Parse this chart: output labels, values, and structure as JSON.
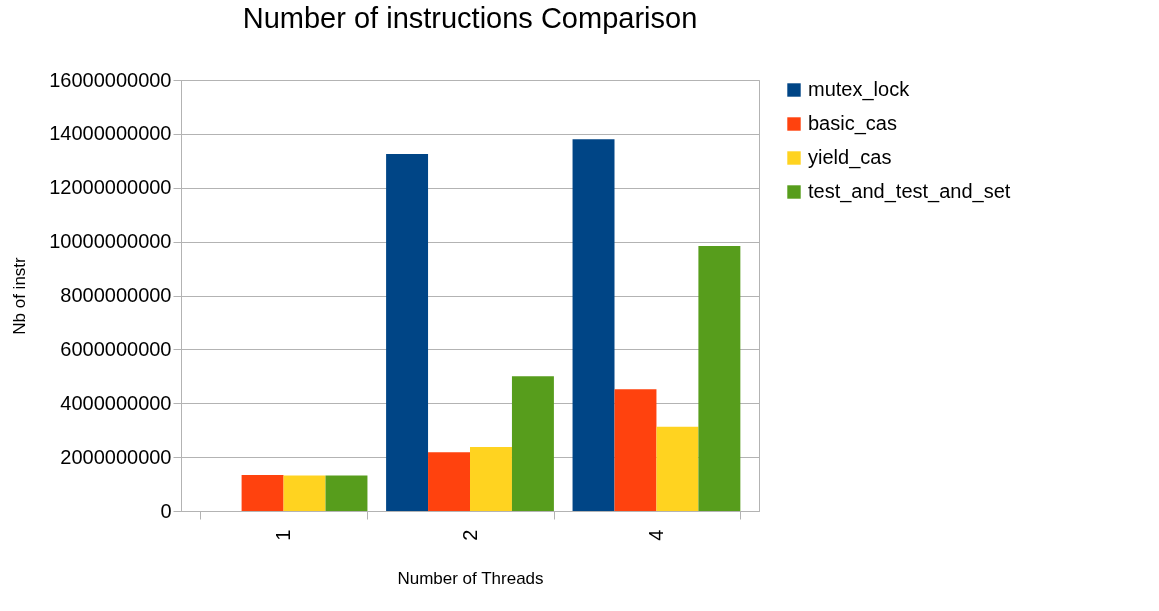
{
  "chart_data": {
    "type": "bar",
    "title": "Number of instructions Comparison",
    "xlabel": "Number of Threads",
    "ylabel": "Nb of instr",
    "categories": [
      "1",
      "2",
      "4"
    ],
    "series": [
      {
        "name": "mutex_lock",
        "color": "#004586",
        "values": [
          0,
          13250000000,
          13800000000
        ]
      },
      {
        "name": "basic_cas",
        "color": "#ff420e",
        "values": [
          1340000000,
          2180000000,
          4520000000
        ]
      },
      {
        "name": "yield_cas",
        "color": "#ffd320",
        "values": [
          1320000000,
          2380000000,
          3130000000
        ]
      },
      {
        "name": "test_and_test_and_set",
        "color": "#579d1c",
        "values": [
          1320000000,
          5000000000,
          9840000000
        ]
      }
    ],
    "ylim": [
      0,
      16000000000
    ],
    "yticks": [
      0,
      2000000000,
      4000000000,
      6000000000,
      8000000000,
      10000000000,
      12000000000,
      14000000000,
      16000000000
    ],
    "grid": "y",
    "legend": "right"
  }
}
